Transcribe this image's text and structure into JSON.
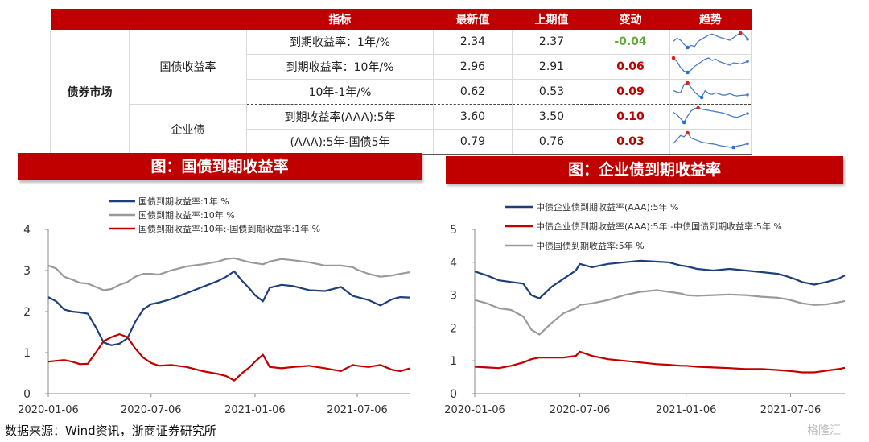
{
  "table": {
    "headers": [
      "",
      "",
      "指标",
      "最新值",
      "上期值",
      "变动",
      "趋势"
    ],
    "section": "债券市场",
    "groups": [
      {
        "name": "国债收益率",
        "rows": [
          {
            "label": "到期收益率：1年/%",
            "latest": "2.34",
            "prev": "2.37",
            "change": "-0.04"
          },
          {
            "label": "到期收益率：10年/%",
            "latest": "2.96",
            "prev": "2.91",
            "change": "0.06"
          },
          {
            "label": "10年-1年/%",
            "latest": "0.62",
            "prev": "0.53",
            "change": "0.09"
          }
        ]
      },
      {
        "name": "企业债",
        "rows": [
          {
            "label": "到期收益率(AAA):5年",
            "latest": "3.60",
            "prev": "3.50",
            "change": "0.10"
          },
          {
            "label": "(AAA):5年-国债5年",
            "latest": "0.79",
            "prev": "0.76",
            "change": "0.03"
          }
        ]
      }
    ]
  },
  "banners": {
    "left": "图：国债到期收益率",
    "right": "图：企业债到期收益率"
  },
  "chart_data": [
    {
      "type": "line",
      "ylim": [
        0,
        4
      ],
      "yticks": [
        "0",
        "1",
        "2",
        "3",
        "4"
      ],
      "xlim": [
        "2020-01-06",
        "2021-10-08"
      ],
      "xticks": [
        "2020-01-06",
        "2020-07-06",
        "2021-01-06",
        "2021-07-06"
      ],
      "legend_position": "top",
      "grid": false,
      "series": [
        {
          "name": "国债到期收益率:1年 %",
          "color": "#1f3f7a",
          "dates": [
            "2020-01-06",
            "2020-01-20",
            "2020-02-03",
            "2020-02-17",
            "2020-03-02",
            "2020-03-16",
            "2020-03-30",
            "2020-04-13",
            "2020-04-27",
            "2020-05-11",
            "2020-05-25",
            "2020-06-08",
            "2020-06-22",
            "2020-07-06",
            "2020-07-20",
            "2020-08-10",
            "2020-09-07",
            "2020-10-05",
            "2020-11-02",
            "2020-11-16",
            "2020-11-30",
            "2020-12-14",
            "2020-12-28",
            "2021-01-06",
            "2021-01-20",
            "2021-02-01",
            "2021-02-22",
            "2021-03-15",
            "2021-04-12",
            "2021-05-10",
            "2021-06-07",
            "2021-06-28",
            "2021-07-06",
            "2021-07-26",
            "2021-08-16",
            "2021-09-06",
            "2021-09-20",
            "2021-10-08"
          ],
          "values": [
            2.35,
            2.25,
            2.05,
            2.0,
            1.98,
            1.95,
            1.62,
            1.25,
            1.18,
            1.22,
            1.35,
            1.75,
            2.05,
            2.18,
            2.22,
            2.3,
            2.45,
            2.6,
            2.75,
            2.85,
            2.98,
            2.75,
            2.55,
            2.4,
            2.25,
            2.58,
            2.65,
            2.62,
            2.52,
            2.5,
            2.6,
            2.38,
            2.35,
            2.28,
            2.15,
            2.3,
            2.35,
            2.34
          ]
        },
        {
          "name": "国债到期收益率:10年 %",
          "color": "#9a9a9a",
          "dates": [
            "2020-01-06",
            "2020-01-20",
            "2020-02-03",
            "2020-02-17",
            "2020-03-02",
            "2020-03-16",
            "2020-03-30",
            "2020-04-13",
            "2020-04-27",
            "2020-05-11",
            "2020-05-25",
            "2020-06-08",
            "2020-06-22",
            "2020-07-06",
            "2020-07-20",
            "2020-08-10",
            "2020-09-07",
            "2020-10-05",
            "2020-11-02",
            "2020-11-16",
            "2020-11-30",
            "2020-12-14",
            "2020-12-28",
            "2021-01-06",
            "2021-01-20",
            "2021-02-01",
            "2021-02-22",
            "2021-03-15",
            "2021-04-12",
            "2021-05-10",
            "2021-06-07",
            "2021-06-28",
            "2021-07-06",
            "2021-07-26",
            "2021-08-16",
            "2021-09-06",
            "2021-09-20",
            "2021-10-08"
          ],
          "values": [
            3.12,
            3.05,
            2.85,
            2.78,
            2.7,
            2.68,
            2.6,
            2.52,
            2.55,
            2.65,
            2.72,
            2.85,
            2.92,
            2.92,
            2.9,
            3.0,
            3.1,
            3.15,
            3.22,
            3.28,
            3.3,
            3.25,
            3.2,
            3.18,
            3.15,
            3.22,
            3.28,
            3.25,
            3.2,
            3.12,
            3.12,
            3.08,
            3.02,
            2.92,
            2.85,
            2.88,
            2.92,
            2.96
          ]
        },
        {
          "name": "国债到期收益率:10年:-国债到期收益率:1年 %",
          "color": "#c00000",
          "dates": [
            "2020-01-06",
            "2020-01-20",
            "2020-02-03",
            "2020-02-17",
            "2020-03-02",
            "2020-03-16",
            "2020-03-30",
            "2020-04-13",
            "2020-04-27",
            "2020-05-11",
            "2020-05-25",
            "2020-06-08",
            "2020-06-22",
            "2020-07-06",
            "2020-07-20",
            "2020-08-10",
            "2020-09-07",
            "2020-10-05",
            "2020-11-02",
            "2020-11-16",
            "2020-11-30",
            "2020-12-14",
            "2020-12-28",
            "2021-01-06",
            "2021-01-20",
            "2021-02-01",
            "2021-02-22",
            "2021-03-15",
            "2021-04-12",
            "2021-05-10",
            "2021-06-07",
            "2021-06-28",
            "2021-07-06",
            "2021-07-26",
            "2021-08-16",
            "2021-09-06",
            "2021-09-20",
            "2021-10-08"
          ],
          "values": [
            0.78,
            0.8,
            0.82,
            0.78,
            0.72,
            0.73,
            1.0,
            1.28,
            1.38,
            1.45,
            1.38,
            1.1,
            0.88,
            0.75,
            0.68,
            0.7,
            0.65,
            0.55,
            0.48,
            0.43,
            0.32,
            0.5,
            0.65,
            0.78,
            0.95,
            0.65,
            0.62,
            0.65,
            0.68,
            0.62,
            0.55,
            0.7,
            0.68,
            0.65,
            0.7,
            0.58,
            0.55,
            0.62
          ]
        }
      ]
    },
    {
      "type": "line",
      "ylim": [
        0,
        5
      ],
      "yticks": [
        "0",
        "1",
        "2",
        "3",
        "4",
        "5"
      ],
      "xlim": [
        "2020-01-06",
        "2021-10-08"
      ],
      "xticks": [
        "2020-01-06",
        "2020-07-06",
        "2021-01-06",
        "2021-07-06"
      ],
      "legend_position": "top",
      "grid": false,
      "series": [
        {
          "name": "中债企业债到期收益率(AAA):5年 %",
          "color": "#1f3f7a",
          "dates": [
            "2020-01-06",
            "2020-01-27",
            "2020-02-17",
            "2020-03-09",
            "2020-03-30",
            "2020-04-13",
            "2020-04-27",
            "2020-05-18",
            "2020-06-08",
            "2020-06-29",
            "2020-07-06",
            "2020-07-27",
            "2020-08-24",
            "2020-09-21",
            "2020-10-19",
            "2020-11-16",
            "2020-12-07",
            "2020-12-28",
            "2021-01-06",
            "2021-01-25",
            "2021-02-22",
            "2021-03-22",
            "2021-04-19",
            "2021-05-17",
            "2021-06-14",
            "2021-06-28",
            "2021-07-12",
            "2021-07-26",
            "2021-08-16",
            "2021-09-06",
            "2021-09-27",
            "2021-10-08"
          ],
          "values": [
            3.72,
            3.6,
            3.45,
            3.4,
            3.35,
            3.0,
            2.9,
            3.25,
            3.5,
            3.75,
            3.95,
            3.85,
            3.95,
            4.0,
            4.05,
            4.02,
            4.0,
            3.9,
            3.88,
            3.8,
            3.75,
            3.8,
            3.75,
            3.7,
            3.65,
            3.58,
            3.5,
            3.4,
            3.32,
            3.4,
            3.5,
            3.6
          ]
        },
        {
          "name": "中债企业债到期收益率(AAA):5年:-中债国债到期收益率:5年 %",
          "color": "#c00000",
          "dates": [
            "2020-01-06",
            "2020-01-27",
            "2020-02-17",
            "2020-03-09",
            "2020-03-30",
            "2020-04-13",
            "2020-04-27",
            "2020-05-18",
            "2020-06-08",
            "2020-06-29",
            "2020-07-06",
            "2020-07-27",
            "2020-08-24",
            "2020-09-21",
            "2020-10-19",
            "2020-11-16",
            "2020-12-07",
            "2020-12-28",
            "2021-01-06",
            "2021-01-25",
            "2021-02-22",
            "2021-03-22",
            "2021-04-19",
            "2021-05-17",
            "2021-06-14",
            "2021-06-28",
            "2021-07-12",
            "2021-07-26",
            "2021-08-16",
            "2021-09-06",
            "2021-09-27",
            "2021-10-08"
          ],
          "values": [
            0.82,
            0.8,
            0.78,
            0.85,
            0.95,
            1.05,
            1.1,
            1.1,
            1.1,
            1.15,
            1.28,
            1.15,
            1.05,
            1.0,
            0.95,
            0.9,
            0.88,
            0.85,
            0.85,
            0.82,
            0.8,
            0.78,
            0.75,
            0.75,
            0.72,
            0.7,
            0.68,
            0.65,
            0.65,
            0.7,
            0.75,
            0.79
          ]
        },
        {
          "name": "中债国债到期收益率:5年 %",
          "color": "#9a9a9a",
          "dates": [
            "2020-01-06",
            "2020-01-27",
            "2020-02-17",
            "2020-03-09",
            "2020-03-30",
            "2020-04-13",
            "2020-04-27",
            "2020-05-18",
            "2020-06-08",
            "2020-06-29",
            "2020-07-06",
            "2020-07-27",
            "2020-08-24",
            "2020-09-21",
            "2020-10-19",
            "2020-11-16",
            "2020-12-07",
            "2020-12-28",
            "2021-01-06",
            "2021-01-25",
            "2021-02-22",
            "2021-03-22",
            "2021-04-19",
            "2021-05-17",
            "2021-06-14",
            "2021-06-28",
            "2021-07-12",
            "2021-07-26",
            "2021-08-16",
            "2021-09-06",
            "2021-09-27",
            "2021-10-08"
          ],
          "values": [
            2.85,
            2.75,
            2.6,
            2.55,
            2.35,
            1.95,
            1.8,
            2.15,
            2.45,
            2.6,
            2.7,
            2.75,
            2.85,
            3.0,
            3.1,
            3.15,
            3.1,
            3.05,
            3.0,
            2.98,
            3.0,
            3.02,
            3.0,
            2.95,
            2.92,
            2.88,
            2.82,
            2.75,
            2.7,
            2.72,
            2.78,
            2.82
          ]
        }
      ]
    }
  ],
  "sparklines": [
    {
      "values": [
        2.2,
        2.5,
        2.3,
        1.9,
        1.6,
        1.8,
        1.7,
        2.2,
        2.4,
        2.6,
        2.8,
        2.9,
        2.75,
        2.6,
        2.5,
        2.4,
        2.3,
        2.55,
        2.8,
        3.0,
        2.9,
        2.4
      ]
    },
    {
      "values": [
        3.1,
        2.95,
        2.7,
        2.55,
        2.5,
        2.6,
        2.75,
        2.85,
        2.95,
        3.05,
        3.1,
        3.0,
        3.05,
        2.95,
        2.9,
        2.85,
        2.8,
        2.9,
        2.88,
        2.85,
        2.9,
        2.96
      ]
    },
    {
      "values": [
        0.9,
        0.8,
        0.75,
        1.3,
        1.4,
        1.1,
        0.8,
        0.6,
        0.45,
        0.9,
        0.7,
        0.65,
        0.75,
        0.68,
        0.6,
        0.62,
        0.7,
        0.6,
        0.55,
        0.58,
        0.6,
        0.62
      ]
    },
    {
      "values": [
        3.7,
        3.5,
        3.2,
        2.9,
        3.4,
        3.8,
        4.0,
        4.05,
        3.95,
        3.9,
        3.85,
        3.8,
        3.75,
        3.7,
        3.65,
        3.55,
        3.45,
        3.35,
        3.3,
        3.4,
        3.5,
        3.6
      ]
    },
    {
      "values": [
        0.8,
        0.95,
        1.1,
        1.05,
        1.2,
        1.0,
        0.95,
        0.9,
        0.85,
        0.82,
        0.8,
        0.78,
        0.76,
        0.72,
        0.7,
        0.68,
        0.66,
        0.65,
        0.7,
        0.72,
        0.75,
        0.79
      ]
    }
  ],
  "source_note": "数据来源：Wind资讯，浙商证券研究所",
  "watermark": "格隆汇"
}
